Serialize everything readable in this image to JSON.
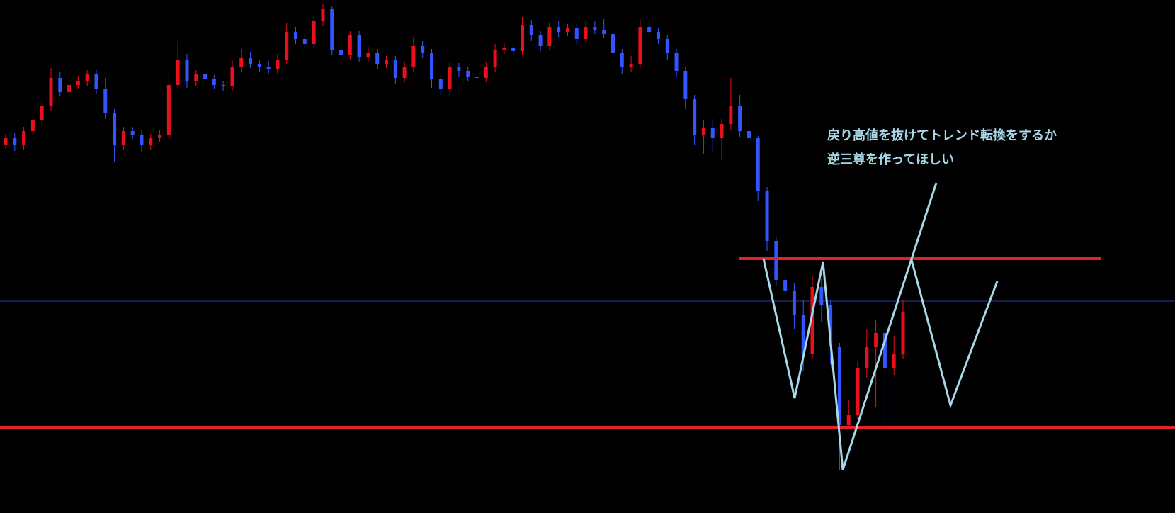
{
  "chart_data": {
    "type": "candlestick",
    "annotations": [
      "戻り高値を抜けてトレンド転換をするか",
      "逆三尊を作ってほしい"
    ],
    "up_color": "#e8101a",
    "down_color": "#3355ff",
    "ylim": [
      0,
      724
    ],
    "open": [
      520,
      529,
      519,
      539,
      554,
      574,
      614,
      594,
      604,
      609,
      619,
      599,
      564,
      519,
      539,
      534,
      519,
      529,
      534,
      604,
      639,
      609,
      619,
      612,
      604,
      602,
      629,
      642,
      634,
      629,
      626,
      639,
      679,
      669,
      662,
      694,
      712,
      654,
      646,
      674,
      644,
      649,
      634,
      639,
      614,
      629,
      659,
      649,
      612,
      599,
      629,
      624,
      616,
      614,
      629,
      654,
      656,
      652,
      689,
      674,
      659,
      686,
      679,
      684,
      669,
      686,
      682,
      676,
      649,
      629,
      634,
      686,
      679,
      669,
      649,
      624,
      584,
      534,
      544,
      529,
      549,
      574,
      539,
      529,
      454,
      384,
      329,
      314,
      279,
      224,
      319,
      294,
      234,
      124,
      139,
      204,
      234,
      254,
      204,
      224
    ],
    "high": [
      535,
      537,
      545,
      560,
      582,
      628,
      622,
      612,
      617,
      625,
      625,
      614,
      570,
      545,
      545,
      540,
      535,
      540,
      620,
      666,
      648,
      625,
      626,
      618,
      610,
      640,
      655,
      650,
      640,
      638,
      648,
      692,
      686,
      676,
      702,
      719,
      716,
      660,
      680,
      680,
      658,
      655,
      645,
      645,
      636,
      672,
      666,
      655,
      618,
      636,
      635,
      630,
      622,
      636,
      662,
      664,
      664,
      700,
      696,
      680,
      692,
      694,
      690,
      690,
      693,
      695,
      697,
      682,
      655,
      645,
      697,
      694,
      685,
      675,
      655,
      630,
      590,
      555,
      556,
      558,
      614,
      590,
      560,
      532,
      460,
      390,
      340,
      324,
      300,
      335,
      330,
      300,
      240,
      160,
      215,
      260,
      272,
      262,
      250,
      300
    ],
    "low": [
      514,
      511,
      513,
      533,
      548,
      568,
      588,
      588,
      598,
      603,
      592,
      556,
      496,
      513,
      528,
      510,
      513,
      523,
      528,
      598,
      600,
      603,
      606,
      598,
      596,
      596,
      623,
      628,
      623,
      620,
      620,
      633,
      662,
      655,
      656,
      688,
      646,
      638,
      640,
      636,
      636,
      626,
      628,
      606,
      608,
      622,
      642,
      600,
      590,
      592,
      616,
      610,
      606,
      608,
      622,
      648,
      645,
      646,
      666,
      652,
      653,
      672,
      673,
      660,
      663,
      676,
      670,
      640,
      620,
      622,
      628,
      672,
      662,
      640,
      616,
      570,
      520,
      506,
      510,
      498,
      540,
      530,
      518,
      440,
      370,
      320,
      300,
      260,
      200,
      218,
      270,
      210,
      60,
      118,
      132,
      190,
      150,
      120,
      195,
      218
    ],
    "close": [
      529,
      519,
      539,
      554,
      574,
      614,
      594,
      604,
      609,
      619,
      599,
      564,
      519,
      539,
      534,
      519,
      529,
      534,
      604,
      639,
      609,
      619,
      612,
      604,
      602,
      629,
      642,
      634,
      629,
      626,
      639,
      679,
      669,
      662,
      694,
      712,
      654,
      646,
      674,
      644,
      649,
      634,
      639,
      614,
      629,
      659,
      649,
      612,
      599,
      629,
      624,
      616,
      614,
      629,
      654,
      656,
      652,
      689,
      674,
      659,
      686,
      679,
      684,
      669,
      686,
      682,
      676,
      649,
      629,
      634,
      686,
      679,
      669,
      649,
      624,
      584,
      534,
      544,
      529,
      549,
      574,
      539,
      529,
      454,
      384,
      329,
      314,
      279,
      224,
      319,
      294,
      234,
      124,
      139,
      204,
      234,
      254,
      204,
      224,
      284
    ]
  }
}
